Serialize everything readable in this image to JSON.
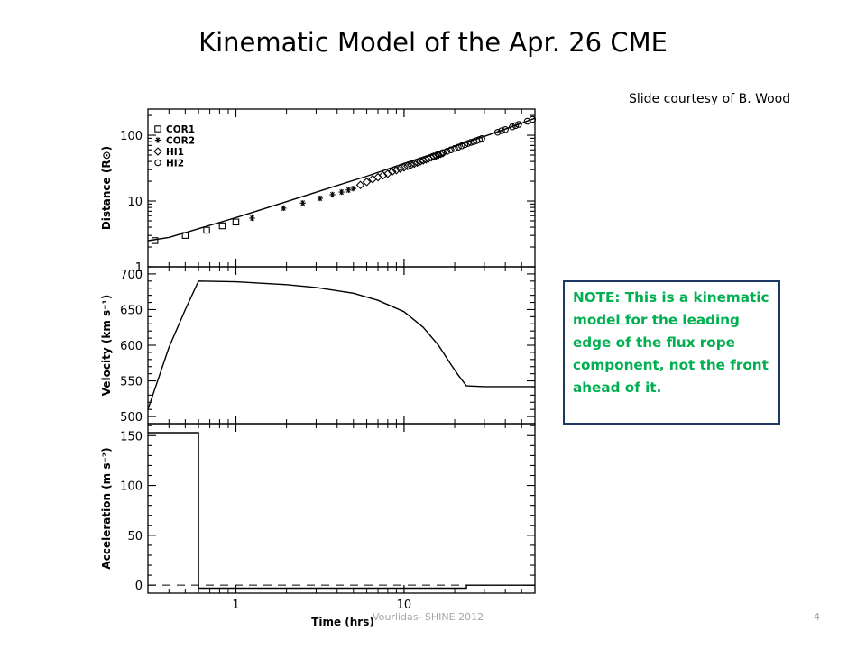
{
  "slide": {
    "title": "Kinematic Model of the Apr. 26 CME",
    "credit": "Slide courtesy of B. Wood",
    "note": "NOTE:  This is a kinematic model for the leading edge of the flux rope component, not the front ahead of it.",
    "footer": "Vourlidas- SHINE 2012",
    "page_number": "4"
  },
  "chart_data": {
    "type": "line",
    "x": {
      "label": "Time  (hrs)",
      "scale": "log",
      "range": [
        0.3,
        60
      ],
      "tick_labels": [
        "1",
        "10"
      ]
    },
    "phases": {
      "accel_end_hr": 0.6,
      "decel_end_hr": 23.5
    },
    "panels": [
      {
        "id": "distance",
        "ylabel": "Distance (R⊙)",
        "scale": "log",
        "ylim": [
          1,
          250
        ],
        "tick_labels": [
          "1",
          "10",
          "100"
        ],
        "model_curve": {
          "x_hr": [
            0.3,
            0.4,
            0.6,
            1.0,
            2.0,
            4.0,
            6.0,
            10,
            15,
            20,
            30,
            45,
            60
          ],
          "y": [
            2.5,
            2.8,
            3.8,
            5.6,
            9.8,
            17.2,
            23.8,
            37.3,
            52.5,
            68,
            96,
            138,
            181
          ]
        },
        "series": [
          {
            "name": "COR1",
            "marker": "square",
            "x_hr": [
              0.33,
              0.5,
              0.67,
              0.83,
              1.0
            ],
            "y": [
              2.5,
              3.0,
              3.6,
              4.2,
              4.8
            ]
          },
          {
            "name": "COR2",
            "marker": "asterisk",
            "x_hr": [
              1.25,
              1.92,
              2.5,
              3.17,
              3.75,
              4.25,
              4.67,
              5.0
            ],
            "y": [
              5.5,
              7.8,
              9.3,
              11.0,
              12.5,
              13.7,
              14.7,
              15.5
            ]
          },
          {
            "name": "HI1",
            "marker": "diamond",
            "x_hr": [
              5.5,
              6.0,
              6.5,
              7.0,
              7.5,
              8.0,
              8.5,
              9.0,
              9.5,
              10.0,
              10.5,
              11.0,
              11.5,
              12.0,
              12.5,
              13.0,
              13.5,
              14.0,
              14.5,
              15.0,
              15.5,
              16.0,
              16.5,
              17.0
            ],
            "y": [
              17.5,
              19.5,
              21.5,
              23.0,
              24.5,
              26.0,
              28.0,
              29.5,
              31.0,
              32.5,
              34.0,
              35.5,
              37.0,
              38.5,
              40.0,
              41.5,
              43.0,
              44.5,
              46.0,
              47.5,
              49.0,
              50.5,
              52.0,
              53.5
            ]
          },
          {
            "name": "HI2",
            "marker": "circle",
            "x_hr": [
              15.0,
              16.0,
              17.0,
              18.0,
              19.0,
              20.0,
              21.0,
              22.0,
              23.0,
              24.0,
              25.0,
              26.0,
              27.0,
              28.0,
              29.0,
              36.0,
              38.0,
              40.0,
              44.0,
              46.0,
              48.0,
              54.0,
              58.0
            ],
            "y": [
              48,
              51,
              54,
              57,
              60,
              63,
              66,
              69,
              72,
              75,
              78,
              80,
              83,
              86,
              89,
              111,
              117,
              122,
              134,
              140,
              146,
              163,
              174
            ]
          }
        ]
      },
      {
        "id": "velocity",
        "ylabel": "Velocity  (km s⁻¹)",
        "scale": "linear",
        "ylim": [
          490,
          710
        ],
        "tick_labels": [
          "500",
          "550",
          "600",
          "650",
          "700"
        ],
        "model_curve": {
          "x_hr": [
            0.3,
            0.4,
            0.5,
            0.6,
            1.0,
            2.0,
            3.0,
            5.0,
            7.0,
            10.0,
            13.0,
            16.0,
            19.0,
            21.0,
            23.5,
            30.0,
            60.0
          ],
          "y": [
            510,
            597,
            650,
            690,
            689,
            685,
            681,
            673,
            663,
            647,
            625,
            600,
            573,
            558,
            543,
            542,
            542
          ]
        }
      },
      {
        "id": "acceleration",
        "ylabel": "Acceleration  (m s⁻²)",
        "scale": "linear",
        "ylim": [
          -8,
          162
        ],
        "tick_labels": [
          "0",
          "50",
          "100",
          "150"
        ],
        "model_curve": {
          "x_hr": [
            0.3,
            0.6,
            0.6,
            23.5,
            23.5,
            60.0
          ],
          "y": [
            153,
            153,
            -3,
            -3,
            0,
            0
          ]
        },
        "reference_line": {
          "y": 0,
          "style": "dashed"
        }
      }
    ]
  }
}
